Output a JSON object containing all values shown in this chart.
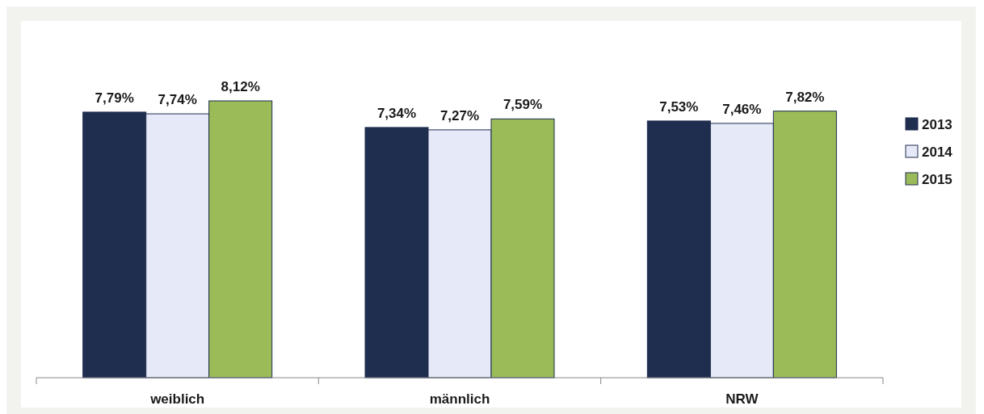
{
  "chart_data": {
    "type": "bar",
    "categories": [
      "weiblich",
      "männlich",
      "NRW"
    ],
    "series": [
      {
        "name": "2013",
        "color": "#1f2d4e",
        "values": [
          7.79,
          7.34,
          7.53
        ],
        "value_labels": [
          "7,79%",
          "7,34%",
          "7,53%"
        ]
      },
      {
        "name": "2014",
        "color": "#e6e9f7",
        "values": [
          7.74,
          7.27,
          7.46
        ],
        "value_labels": [
          "7,74%",
          "7,27%",
          "7,46%"
        ]
      },
      {
        "name": "2015",
        "color": "#9bbb59",
        "values": [
          8.12,
          7.59,
          7.82
        ],
        "value_labels": [
          "8,12%",
          "7,59%",
          "7,82%"
        ]
      }
    ],
    "legend": "top right",
    "grid": false
  }
}
